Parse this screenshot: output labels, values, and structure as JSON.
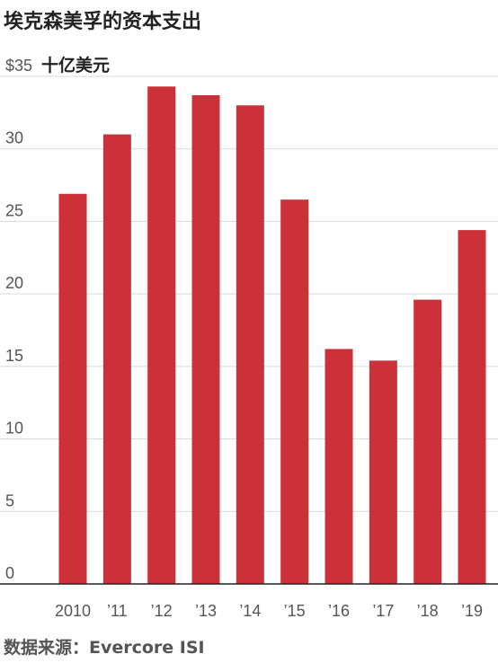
{
  "chart_data": {
    "type": "bar",
    "title": "埃克森美孚的资本支出",
    "unit_label": "十亿美元",
    "y_tick_labels": [
      "0",
      "5",
      "10",
      "15",
      "20",
      "25",
      "30",
      "$35"
    ],
    "ylim": [
      0,
      35
    ],
    "categories": [
      "2010",
      "’11",
      "’12",
      "’13",
      "’14",
      "’15",
      "’16",
      "’17",
      "’18",
      "’19"
    ],
    "values": [
      26.9,
      31.0,
      34.3,
      33.7,
      33.0,
      26.5,
      16.2,
      15.4,
      19.6,
      24.4
    ],
    "bar_color": "#cc3038",
    "grid": true
  },
  "source": "数据来源：Evercore ISI"
}
